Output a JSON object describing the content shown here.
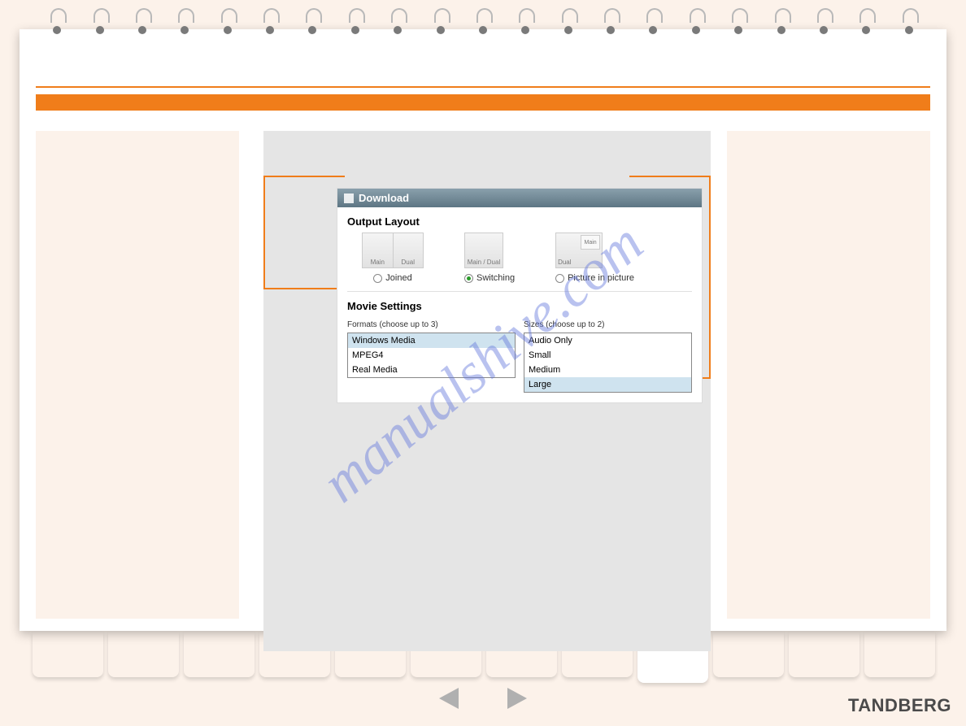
{
  "colors": {
    "page_bg": "#fcf2ea",
    "sheet_bg": "#ffffff",
    "accent_orange": "#f07d1a",
    "panel_header_top": "#8aa0ac",
    "panel_header_bottom": "#5d7684",
    "panel_bg": "#ffffff",
    "mid_bg": "#e5e5e5",
    "selected_row": "#cfe3ef",
    "radio_selected": "#2a9a2a",
    "watermark": "rgba(100,120,220,0.45)",
    "nav_arrow": "#b0b0b0",
    "brand_text": "#4a4a4a"
  },
  "binding": {
    "ring_count": 21
  },
  "panel": {
    "header_title": "Download",
    "output_layout": {
      "title": "Output Layout",
      "options": [
        {
          "id": "joined",
          "label": "Joined",
          "selected": false,
          "thumb_labels": [
            "Main",
            "Dual"
          ]
        },
        {
          "id": "switching",
          "label": "Switching",
          "selected": true,
          "thumb_labels": [
            "Main / Dual"
          ]
        },
        {
          "id": "pip",
          "label": "Picture in picture",
          "selected": false,
          "thumb_labels": [
            "Dual",
            "Main"
          ]
        }
      ]
    },
    "movie_settings": {
      "title": "Movie Settings",
      "formats": {
        "label": "Formats (choose up to 3)",
        "items": [
          {
            "text": "Windows Media",
            "selected": true
          },
          {
            "text": "MPEG4",
            "selected": false
          },
          {
            "text": "Real Media",
            "selected": false
          }
        ]
      },
      "sizes": {
        "label": "Sizes (choose up to 2)",
        "items": [
          {
            "text": "Audio Only",
            "selected": false
          },
          {
            "text": "Small",
            "selected": false
          },
          {
            "text": "Medium",
            "selected": false
          },
          {
            "text": "Large",
            "selected": true
          }
        ]
      }
    }
  },
  "watermark_text": "manualshive.com",
  "tabs": {
    "count": 12,
    "active_index": 8
  },
  "brand": "TANDBERG"
}
